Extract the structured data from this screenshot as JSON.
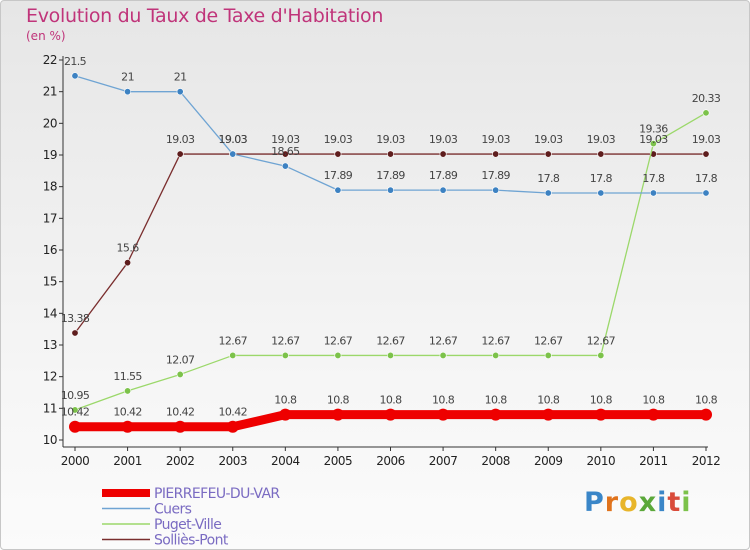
{
  "header": {
    "title": "Evolution du Taux de Taxe d'Habitation",
    "subtitle": "(en %)"
  },
  "logo": {
    "text": "Proxiti"
  },
  "colors": {
    "title": "#c0347a",
    "axis": "#333333",
    "grid": "#d9d9d9"
  },
  "chart_data": {
    "type": "line",
    "title": "Evolution du Taux de Taxe d'Habitation",
    "subtitle": "(en %)",
    "xlabel": "",
    "ylabel": "",
    "x": [
      "2000",
      "2001",
      "2002",
      "2003",
      "2004",
      "2005",
      "2006",
      "2007",
      "2008",
      "2009",
      "2010",
      "2011",
      "2012"
    ],
    "ylim": [
      10,
      22
    ],
    "yticks": [
      10,
      11,
      12,
      13,
      14,
      15,
      16,
      17,
      18,
      19,
      20,
      21,
      22
    ],
    "grid": false,
    "legend": "bottom-left",
    "series": [
      {
        "name": "PIERREFEU-DU-VAR",
        "color": "#ee0000",
        "marker": "#ee0000",
        "width": 9,
        "values": [
          10.42,
          10.42,
          10.42,
          10.42,
          10.8,
          10.8,
          10.8,
          10.8,
          10.8,
          10.8,
          10.8,
          10.8,
          10.8
        ],
        "labels": [
          "10.42",
          "10.42",
          "10.42",
          "10.42",
          "10.8",
          "10.8",
          "10.8",
          "10.8",
          "10.8",
          "10.8",
          "10.8",
          "10.8",
          "10.8"
        ]
      },
      {
        "name": "Cuers",
        "color": "#6fa4d3",
        "marker": "#3d82c2",
        "width": 1.3,
        "values": [
          21.5,
          21,
          21,
          19.03,
          18.65,
          17.89,
          17.89,
          17.89,
          17.89,
          17.8,
          17.8,
          17.8,
          17.8
        ],
        "labels": [
          "21.5",
          "21",
          "21",
          "19.03",
          "18.65",
          "17.89",
          "17.89",
          "17.89",
          "17.89",
          "17.8",
          "17.8",
          "17.8",
          "17.8"
        ]
      },
      {
        "name": "Puget-Ville",
        "color": "#9bd86a",
        "marker": "#7cc24a",
        "width": 1.3,
        "values": [
          10.95,
          11.55,
          12.07,
          12.67,
          12.67,
          12.67,
          12.67,
          12.67,
          12.67,
          12.67,
          12.67,
          19.36,
          20.33
        ],
        "labels": [
          "10.95",
          "11.55",
          "12.07",
          "12.67",
          "12.67",
          "12.67",
          "12.67",
          "12.67",
          "12.67",
          "12.67",
          "12.67",
          "19.36",
          "20.33"
        ]
      },
      {
        "name": "Solliès-Pont",
        "color": "#7a2e2e",
        "marker": "#5e1d1d",
        "width": 1.3,
        "values": [
          13.38,
          15.6,
          19.03,
          19.03,
          19.03,
          19.03,
          19.03,
          19.03,
          19.03,
          19.03,
          19.03,
          19.03,
          19.03
        ],
        "labels": [
          "13.38",
          "15.6",
          "19.03",
          "19.03",
          "19.03",
          "19.03",
          "19.03",
          "19.03",
          "19.03",
          "19.03",
          "19.03",
          "19.03",
          "19.03"
        ]
      }
    ]
  }
}
